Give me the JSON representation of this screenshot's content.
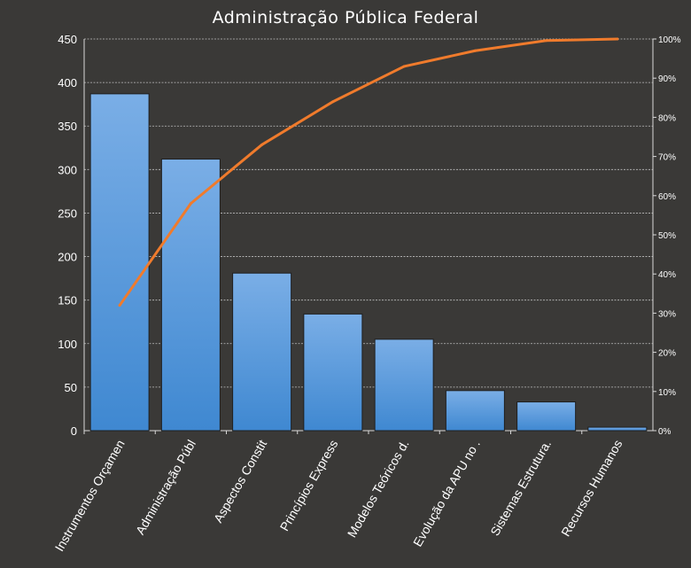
{
  "chart_data": {
    "type": "bar",
    "title": "Administração Pública Federal",
    "categories": [
      "Instrumentos  Orçamen",
      "Administração Públ",
      "Aspectos Constit",
      "Princípios Express",
      "Modelos Teóricos d.",
      "Evolução da APU no .",
      "Sistemas Estrutura.",
      "Recursos Humanos"
    ],
    "series": [
      {
        "type": "bar",
        "values": [
          387,
          312,
          181,
          134,
          105,
          46,
          33,
          4
        ]
      },
      {
        "type": "line",
        "axis": "right",
        "values": [
          32,
          58,
          73,
          84,
          93,
          97,
          99.6,
          100
        ]
      }
    ],
    "ylim": [
      0,
      450
    ],
    "yticks": [
      0,
      50,
      100,
      150,
      200,
      250,
      300,
      350,
      400,
      450
    ],
    "y2lim": [
      0,
      100
    ],
    "y2ticks": [
      "0%",
      "10%",
      "20%",
      "30%",
      "40%",
      "50%",
      "60%",
      "70%",
      "80%",
      "90%",
      "100%"
    ],
    "grid": true,
    "legend": "none",
    "colors": {
      "background": "#3a3937",
      "bar_top": "#7aaee6",
      "bar_bottom": "#3f88d1",
      "line": "#f07b2c",
      "grid": "#bfbfbf",
      "text": "#ffffff"
    }
  }
}
